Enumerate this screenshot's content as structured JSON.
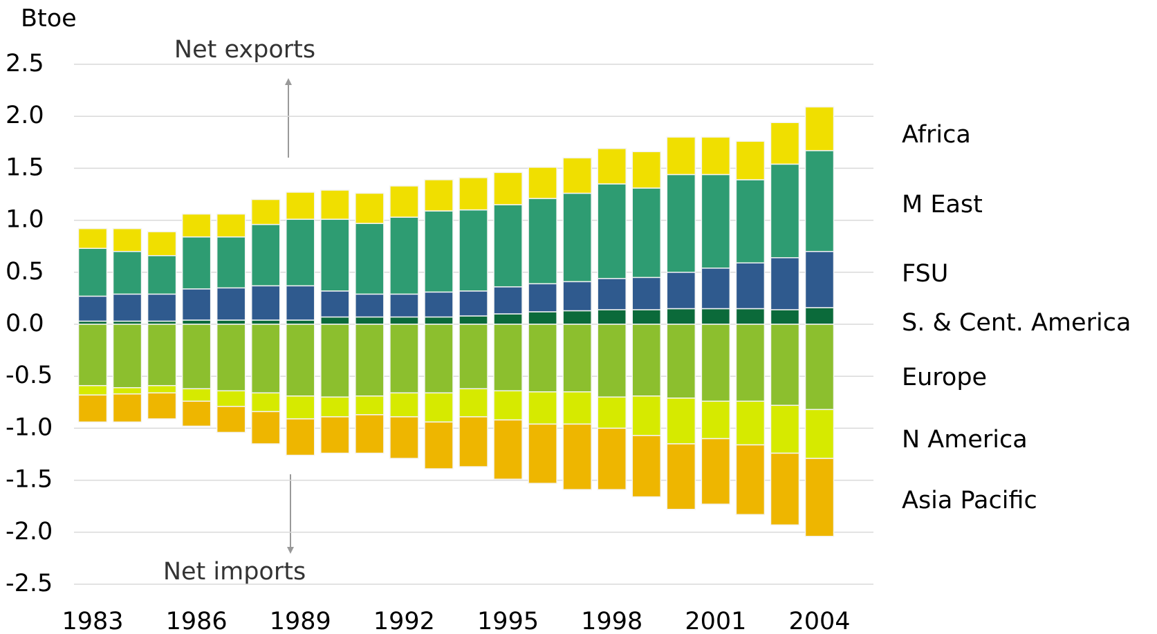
{
  "chart_data": {
    "type": "bar",
    "stacked": true,
    "y_label": "Btoe",
    "annotations": [
      "Net exports",
      "Net imports"
    ],
    "categories": [
      "1983",
      null,
      null,
      "1986",
      null,
      null,
      "1989",
      null,
      null,
      "1992",
      null,
      null,
      "1995",
      null,
      null,
      "1998",
      null,
      null,
      "2001",
      null,
      null,
      "2004"
    ],
    "series": [
      {
        "name": "Africa",
        "color": "#f0df00",
        "values": [
          0.19,
          0.22,
          0.23,
          0.22,
          0.22,
          0.24,
          0.26,
          0.28,
          0.29,
          0.3,
          0.3,
          0.31,
          0.31,
          0.3,
          0.34,
          0.34,
          0.35,
          0.36,
          0.36,
          0.37,
          0.4,
          0.42
        ]
      },
      {
        "name": "M East",
        "color": "#2e9c72",
        "values": [
          0.46,
          0.41,
          0.37,
          0.5,
          0.49,
          0.59,
          0.64,
          0.69,
          0.68,
          0.74,
          0.78,
          0.78,
          0.79,
          0.82,
          0.85,
          0.91,
          0.86,
          0.94,
          0.9,
          0.8,
          0.9,
          0.97
        ]
      },
      {
        "name": "FSU",
        "color": "#2f5a8e",
        "values": [
          0.24,
          0.26,
          0.26,
          0.3,
          0.31,
          0.33,
          0.33,
          0.25,
          0.22,
          0.22,
          0.24,
          0.24,
          0.26,
          0.27,
          0.28,
          0.3,
          0.31,
          0.35,
          0.39,
          0.44,
          0.5,
          0.54
        ]
      },
      {
        "name": "S. & Cent. America",
        "color": "#0b6a3a",
        "values": [
          0.03,
          0.03,
          0.03,
          0.04,
          0.04,
          0.04,
          0.04,
          0.07,
          0.07,
          0.07,
          0.07,
          0.08,
          0.1,
          0.12,
          0.13,
          0.14,
          0.14,
          0.15,
          0.15,
          0.15,
          0.14,
          0.16
        ]
      },
      {
        "name": "Europe",
        "color": "#8cbf2e",
        "values": [
          -0.59,
          -0.61,
          -0.59,
          -0.62,
          -0.64,
          -0.66,
          -0.69,
          -0.7,
          -0.69,
          -0.66,
          -0.66,
          -0.62,
          -0.64,
          -0.65,
          -0.65,
          -0.7,
          -0.69,
          -0.71,
          -0.74,
          -0.74,
          -0.78,
          -0.82
        ]
      },
      {
        "name": "N America",
        "color": "#d6ea00",
        "values": [
          -0.09,
          -0.06,
          -0.07,
          -0.12,
          -0.15,
          -0.18,
          -0.22,
          -0.19,
          -0.18,
          -0.23,
          -0.28,
          -0.27,
          -0.28,
          -0.31,
          -0.31,
          -0.3,
          -0.38,
          -0.44,
          -0.36,
          -0.42,
          -0.46,
          -0.47
        ]
      },
      {
        "name": "Asia Pacific",
        "color": "#eeb600",
        "values": [
          -0.26,
          -0.27,
          -0.25,
          -0.24,
          -0.25,
          -0.31,
          -0.35,
          -0.35,
          -0.37,
          -0.4,
          -0.45,
          -0.48,
          -0.57,
          -0.57,
          -0.63,
          -0.59,
          -0.59,
          -0.63,
          -0.63,
          -0.67,
          -0.69,
          -0.75
        ]
      }
    ],
    "ylim": [
      -2.5,
      2.5
    ],
    "yticks": [
      2.5,
      {
        "value": 2,
        "label": "2.0"
      },
      1.5,
      {
        "value": 1,
        "label": "1.0"
      },
      0.5,
      {
        "value": 0,
        "label": "0.0"
      },
      -0.5,
      {
        "value": -1,
        "label": "-1.0"
      },
      -1.5,
      {
        "value": -2,
        "label": "-2.0"
      },
      -2.5
    ],
    "grid": true
  }
}
